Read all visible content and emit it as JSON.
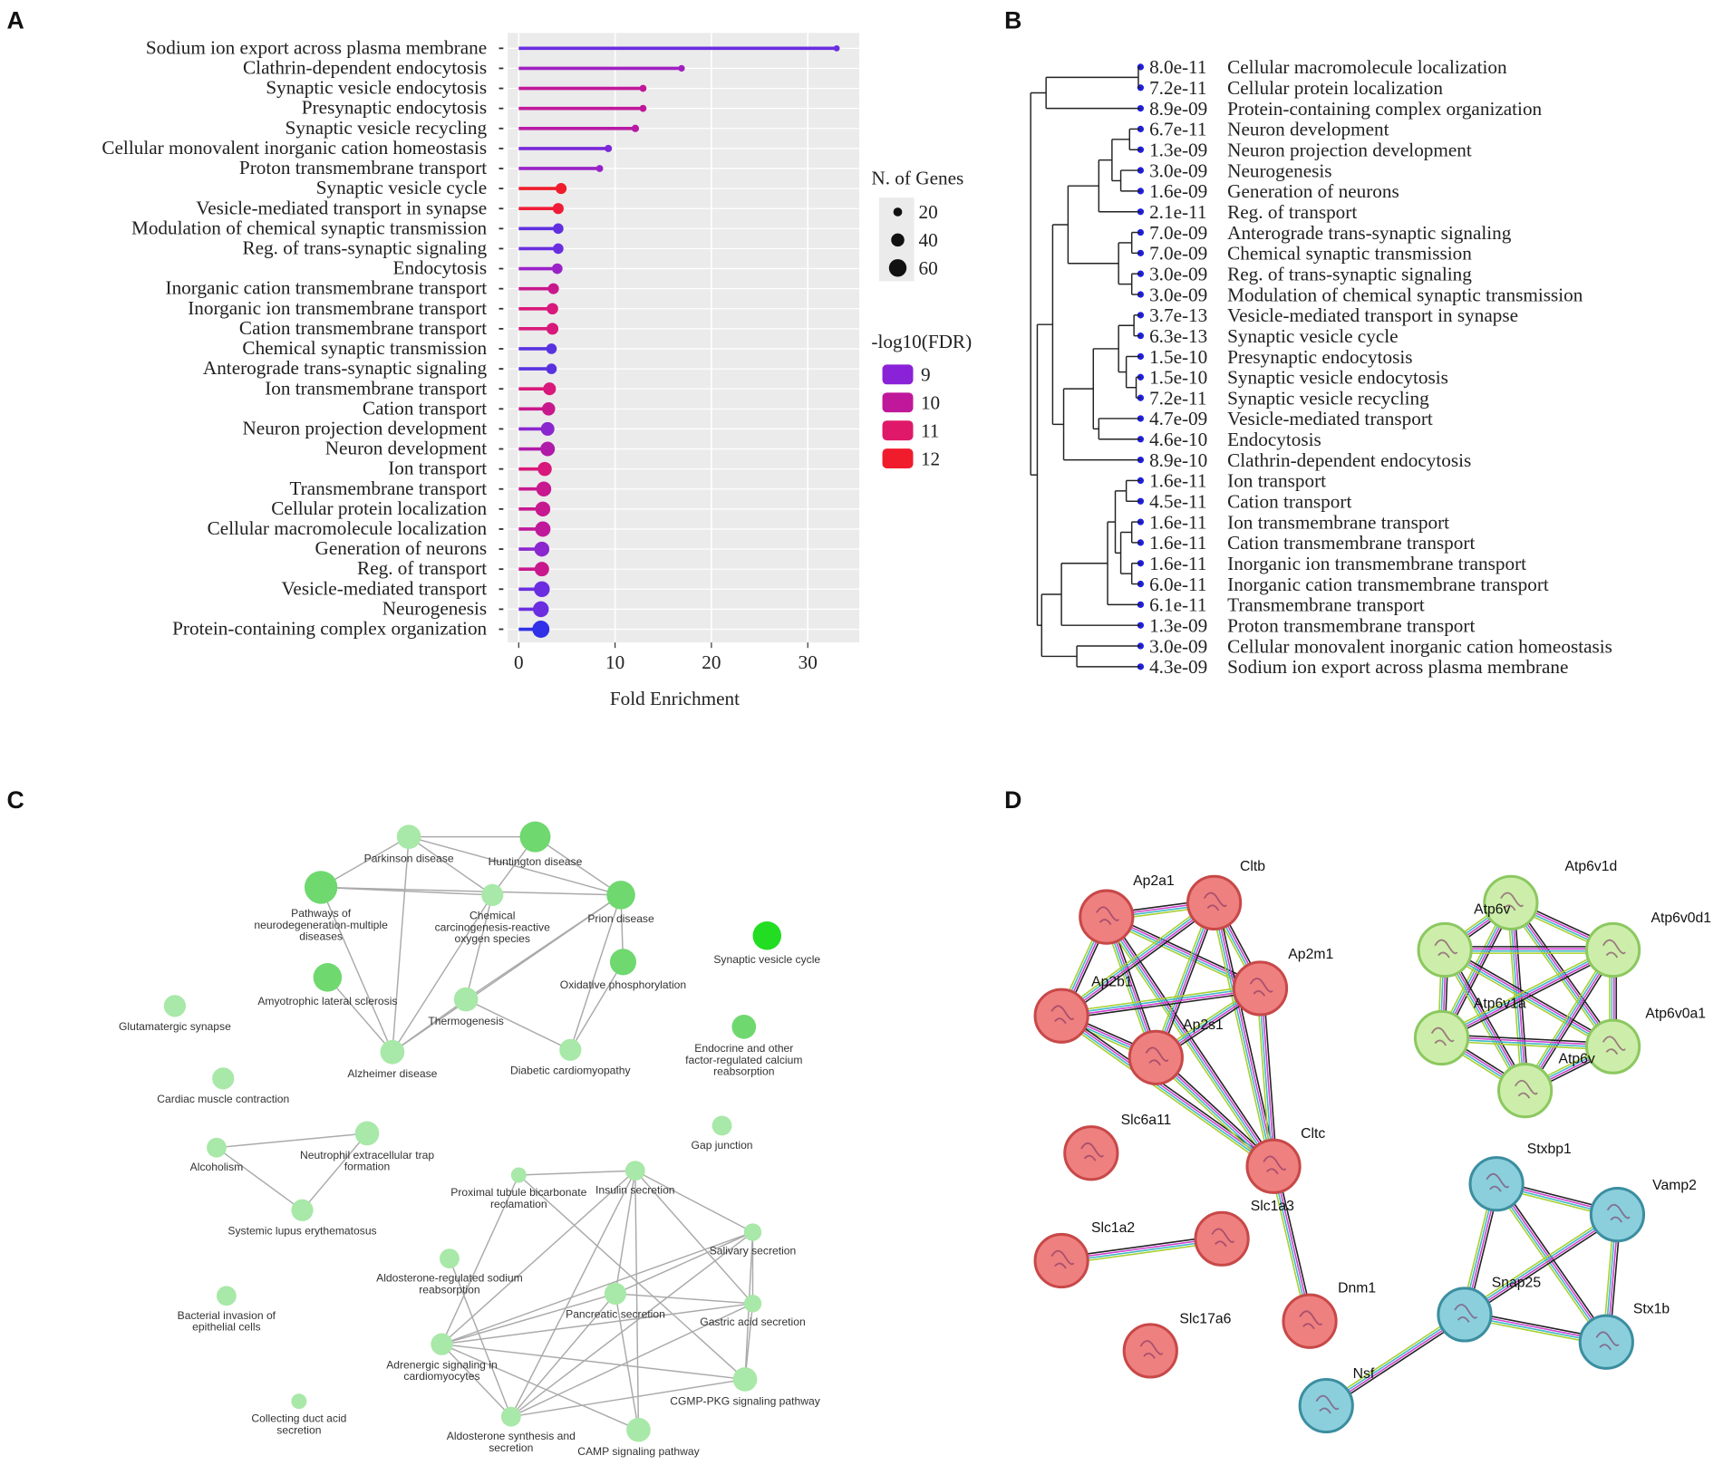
{
  "chart_data": {
    "type": "lollipop",
    "panel_label": "A",
    "categories": [
      "Sodium ion export across plasma membrane",
      "Clathrin-dependent endocytosis",
      "Synaptic vesicle endocytosis",
      "Presynaptic endocytosis",
      "Synaptic vesicle recycling",
      "Cellular monovalent inorganic cation homeostasis",
      "Proton transmembrane transport",
      "Synaptic vesicle cycle",
      "Vesicle-mediated transport in synapse",
      "Modulation of chemical synaptic transmission",
      "Reg. of trans-synaptic signaling",
      "Endocytosis",
      "Inorganic cation transmembrane transport",
      "Inorganic ion transmembrane transport",
      "Cation transmembrane transport",
      "Chemical synaptic transmission",
      "Anterograde trans-synaptic signaling",
      "Ion transmembrane transport",
      "Cation transport",
      "Neuron projection development",
      "Neuron development",
      "Ion transport",
      "Transmembrane transport",
      "Cellular protein localization",
      "Cellular macromolecule localization",
      "Generation of neurons",
      "Reg. of transport",
      "Vesicle-mediated transport",
      "Neurogenesis",
      "Protein-containing complex organization"
    ],
    "values": [
      33.0,
      16.9,
      12.9,
      12.9,
      12.1,
      9.3,
      8.4,
      4.4,
      4.1,
      4.1,
      4.1,
      4.0,
      3.6,
      3.5,
      3.5,
      3.4,
      3.4,
      3.2,
      3.1,
      3.0,
      3.0,
      2.7,
      2.6,
      2.5,
      2.5,
      2.4,
      2.4,
      2.4,
      2.3,
      2.3
    ],
    "n_genes": [
      8,
      10,
      12,
      12,
      14,
      13,
      12,
      30,
      30,
      28,
      28,
      28,
      30,
      32,
      34,
      28,
      28,
      38,
      40,
      42,
      46,
      44,
      48,
      48,
      50,
      48,
      46,
      52,
      52,
      58
    ],
    "colors": [
      "#6a2ee0",
      "#a020c0",
      "#c0189a",
      "#c0189a",
      "#b81aa6",
      "#7a28d8",
      "#9a22c8",
      "#f01c2c",
      "#ee1c38",
      "#6030e0",
      "#6a2ee0",
      "#9a22c8",
      "#c8188c",
      "#d8187a",
      "#d8187a",
      "#5832e0",
      "#5832e0",
      "#d8187a",
      "#c8188c",
      "#8a26d0",
      "#b01aa8",
      "#d8187a",
      "#c81890",
      "#c81890",
      "#c0189a",
      "#8a26d0",
      "#c8188c",
      "#6a2ee0",
      "#6a2ee0",
      "#3030e8"
    ],
    "xlim": [
      -1.14,
      35.35
    ],
    "xticks": [
      0,
      10,
      20,
      30
    ],
    "xlabel": "Fold Enrichment",
    "grid": true,
    "size_legend": {
      "title": "N. of Genes",
      "values": [
        20,
        40,
        60
      ]
    },
    "color_legend": {
      "title": "-log10(FDR)",
      "values": [
        9,
        10,
        11,
        12
      ],
      "colors": [
        "#8a22d8",
        "#c0189a",
        "#e0186a",
        "#f01c2c"
      ]
    }
  },
  "dendrogram": {
    "panel_label": "B",
    "leaves": [
      {
        "fdr": "8.0e-11",
        "label": "Cellular macromolecule localization"
      },
      {
        "fdr": "7.2e-11",
        "label": "Cellular protein localization"
      },
      {
        "fdr": "8.9e-09",
        "label": "Protein-containing complex organization"
      },
      {
        "fdr": "6.7e-11",
        "label": "Neuron development"
      },
      {
        "fdr": "1.3e-09",
        "label": "Neuron projection development"
      },
      {
        "fdr": "3.0e-09",
        "label": "Neurogenesis"
      },
      {
        "fdr": "1.6e-09",
        "label": "Generation of neurons"
      },
      {
        "fdr": "2.1e-11",
        "label": "Reg. of transport"
      },
      {
        "fdr": "7.0e-09",
        "label": "Anterograde trans-synaptic signaling"
      },
      {
        "fdr": "7.0e-09",
        "label": "Chemical synaptic transmission"
      },
      {
        "fdr": "3.0e-09",
        "label": "Reg. of trans-synaptic signaling"
      },
      {
        "fdr": "3.0e-09",
        "label": "Modulation of chemical synaptic transmission"
      },
      {
        "fdr": "3.7e-13",
        "label": "Vesicle-mediated transport in synapse"
      },
      {
        "fdr": "6.3e-13",
        "label": "Synaptic vesicle cycle"
      },
      {
        "fdr": "1.5e-10",
        "label": "Presynaptic endocytosis"
      },
      {
        "fdr": "1.5e-10",
        "label": "Synaptic vesicle endocytosis"
      },
      {
        "fdr": "7.2e-11",
        "label": "Synaptic vesicle recycling"
      },
      {
        "fdr": "4.7e-09",
        "label": "Vesicle-mediated transport"
      },
      {
        "fdr": "4.6e-10",
        "label": "Endocytosis"
      },
      {
        "fdr": "8.9e-10",
        "label": "Clathrin-dependent endocytosis"
      },
      {
        "fdr": "1.6e-11",
        "label": "Ion transport"
      },
      {
        "fdr": "4.5e-11",
        "label": "Cation transport"
      },
      {
        "fdr": "1.6e-11",
        "label": "Ion transmembrane transport"
      },
      {
        "fdr": "1.6e-11",
        "label": "Cation transmembrane transport"
      },
      {
        "fdr": "1.6e-11",
        "label": "Inorganic ion transmembrane transport"
      },
      {
        "fdr": "6.0e-11",
        "label": "Inorganic cation transmembrane transport"
      },
      {
        "fdr": "6.1e-11",
        "label": "Transmembrane transport"
      },
      {
        "fdr": "1.3e-09",
        "label": "Proton transmembrane transport"
      },
      {
        "fdr": "3.0e-09",
        "label": "Cellular monovalent inorganic cation homeostasis"
      },
      {
        "fdr": "4.3e-09",
        "label": "Sodium ion export across plasma membrane"
      }
    ]
  },
  "network_c": {
    "panel_label": "C",
    "nodes": [
      {
        "label": [
          "Parkinson disease"
        ]
      },
      {
        "label": [
          "Huntington disease"
        ]
      },
      {
        "label": [
          "Pathways of",
          "neurodegeneration-multiple",
          "diseases"
        ]
      },
      {
        "label": [
          "Chemical",
          "carcinogenesis-reactive",
          "oxygen species"
        ]
      },
      {
        "label": [
          "Prion disease"
        ]
      },
      {
        "label": [
          "Synaptic vesicle cycle"
        ]
      },
      {
        "label": [
          "Oxidative phosphorylation"
        ]
      },
      {
        "label": [
          "Amyotrophic lateral sclerosis"
        ]
      },
      {
        "label": [
          "Thermogenesis"
        ]
      },
      {
        "label": [
          "Glutamatergic synapse"
        ]
      },
      {
        "label": [
          "Endocrine and other",
          "factor-regulated calcium",
          "reabsorption"
        ]
      },
      {
        "label": [
          "Alzheimer disease"
        ]
      },
      {
        "label": [
          "Diabetic cardiomyopathy"
        ]
      },
      {
        "label": [
          "Cardiac muscle contraction"
        ]
      },
      {
        "label": [
          "Gap junction"
        ]
      },
      {
        "label": [
          "Alcoholism"
        ]
      },
      {
        "label": [
          "Neutrophil extracellular trap",
          "formation"
        ]
      },
      {
        "label": [
          "Systemic lupus erythematosus"
        ]
      },
      {
        "label": [
          "Proximal tubule bicarbonate",
          "reclamation"
        ]
      },
      {
        "label": [
          "Insulin secretion"
        ]
      },
      {
        "label": [
          "Salivary secretion"
        ]
      },
      {
        "label": [
          "Aldosterone-regulated sodium",
          "reabsorption"
        ]
      },
      {
        "label": [
          "Bacterial invasion of",
          "epithelial cells"
        ]
      },
      {
        "label": [
          "Pancreatic secretion"
        ]
      },
      {
        "label": [
          "Gastric acid secretion"
        ]
      },
      {
        "label": [
          "Adrenergic signaling in",
          "cardiomyocytes"
        ]
      },
      {
        "label": [
          "CGMP-PKG signaling pathway"
        ]
      },
      {
        "label": [
          "Collecting duct acid",
          "secretion"
        ]
      },
      {
        "label": [
          "Aldosterone synthesis and",
          "secretion"
        ]
      },
      {
        "label": [
          "CAMP signaling pathway"
        ]
      }
    ]
  },
  "network_d": {
    "panel_label": "D",
    "nodes": [
      {
        "label": "Ap2a1"
      },
      {
        "label": "Cltb"
      },
      {
        "label": "Ap2m1"
      },
      {
        "label": "Ap2b1"
      },
      {
        "label": "Ap2s1"
      },
      {
        "label": "Slc6a11"
      },
      {
        "label": "Cltc"
      },
      {
        "label": "Slc1a2"
      },
      {
        "label": "Slc1a3"
      },
      {
        "label": "Dnm1"
      },
      {
        "label": "Slc17a6"
      },
      {
        "label": "Atp6v1d"
      },
      {
        "label": "Atp6v"
      },
      {
        "label": "Atp6v0d1"
      },
      {
        "label": "Atp6v1a"
      },
      {
        "label": "Atp6v0a1"
      },
      {
        "label": "Atp6v"
      },
      {
        "label": "Stxbp1"
      },
      {
        "label": "Vamp2"
      },
      {
        "label": "Snap25"
      },
      {
        "label": "Stx1b"
      },
      {
        "label": "Nsf"
      }
    ]
  }
}
